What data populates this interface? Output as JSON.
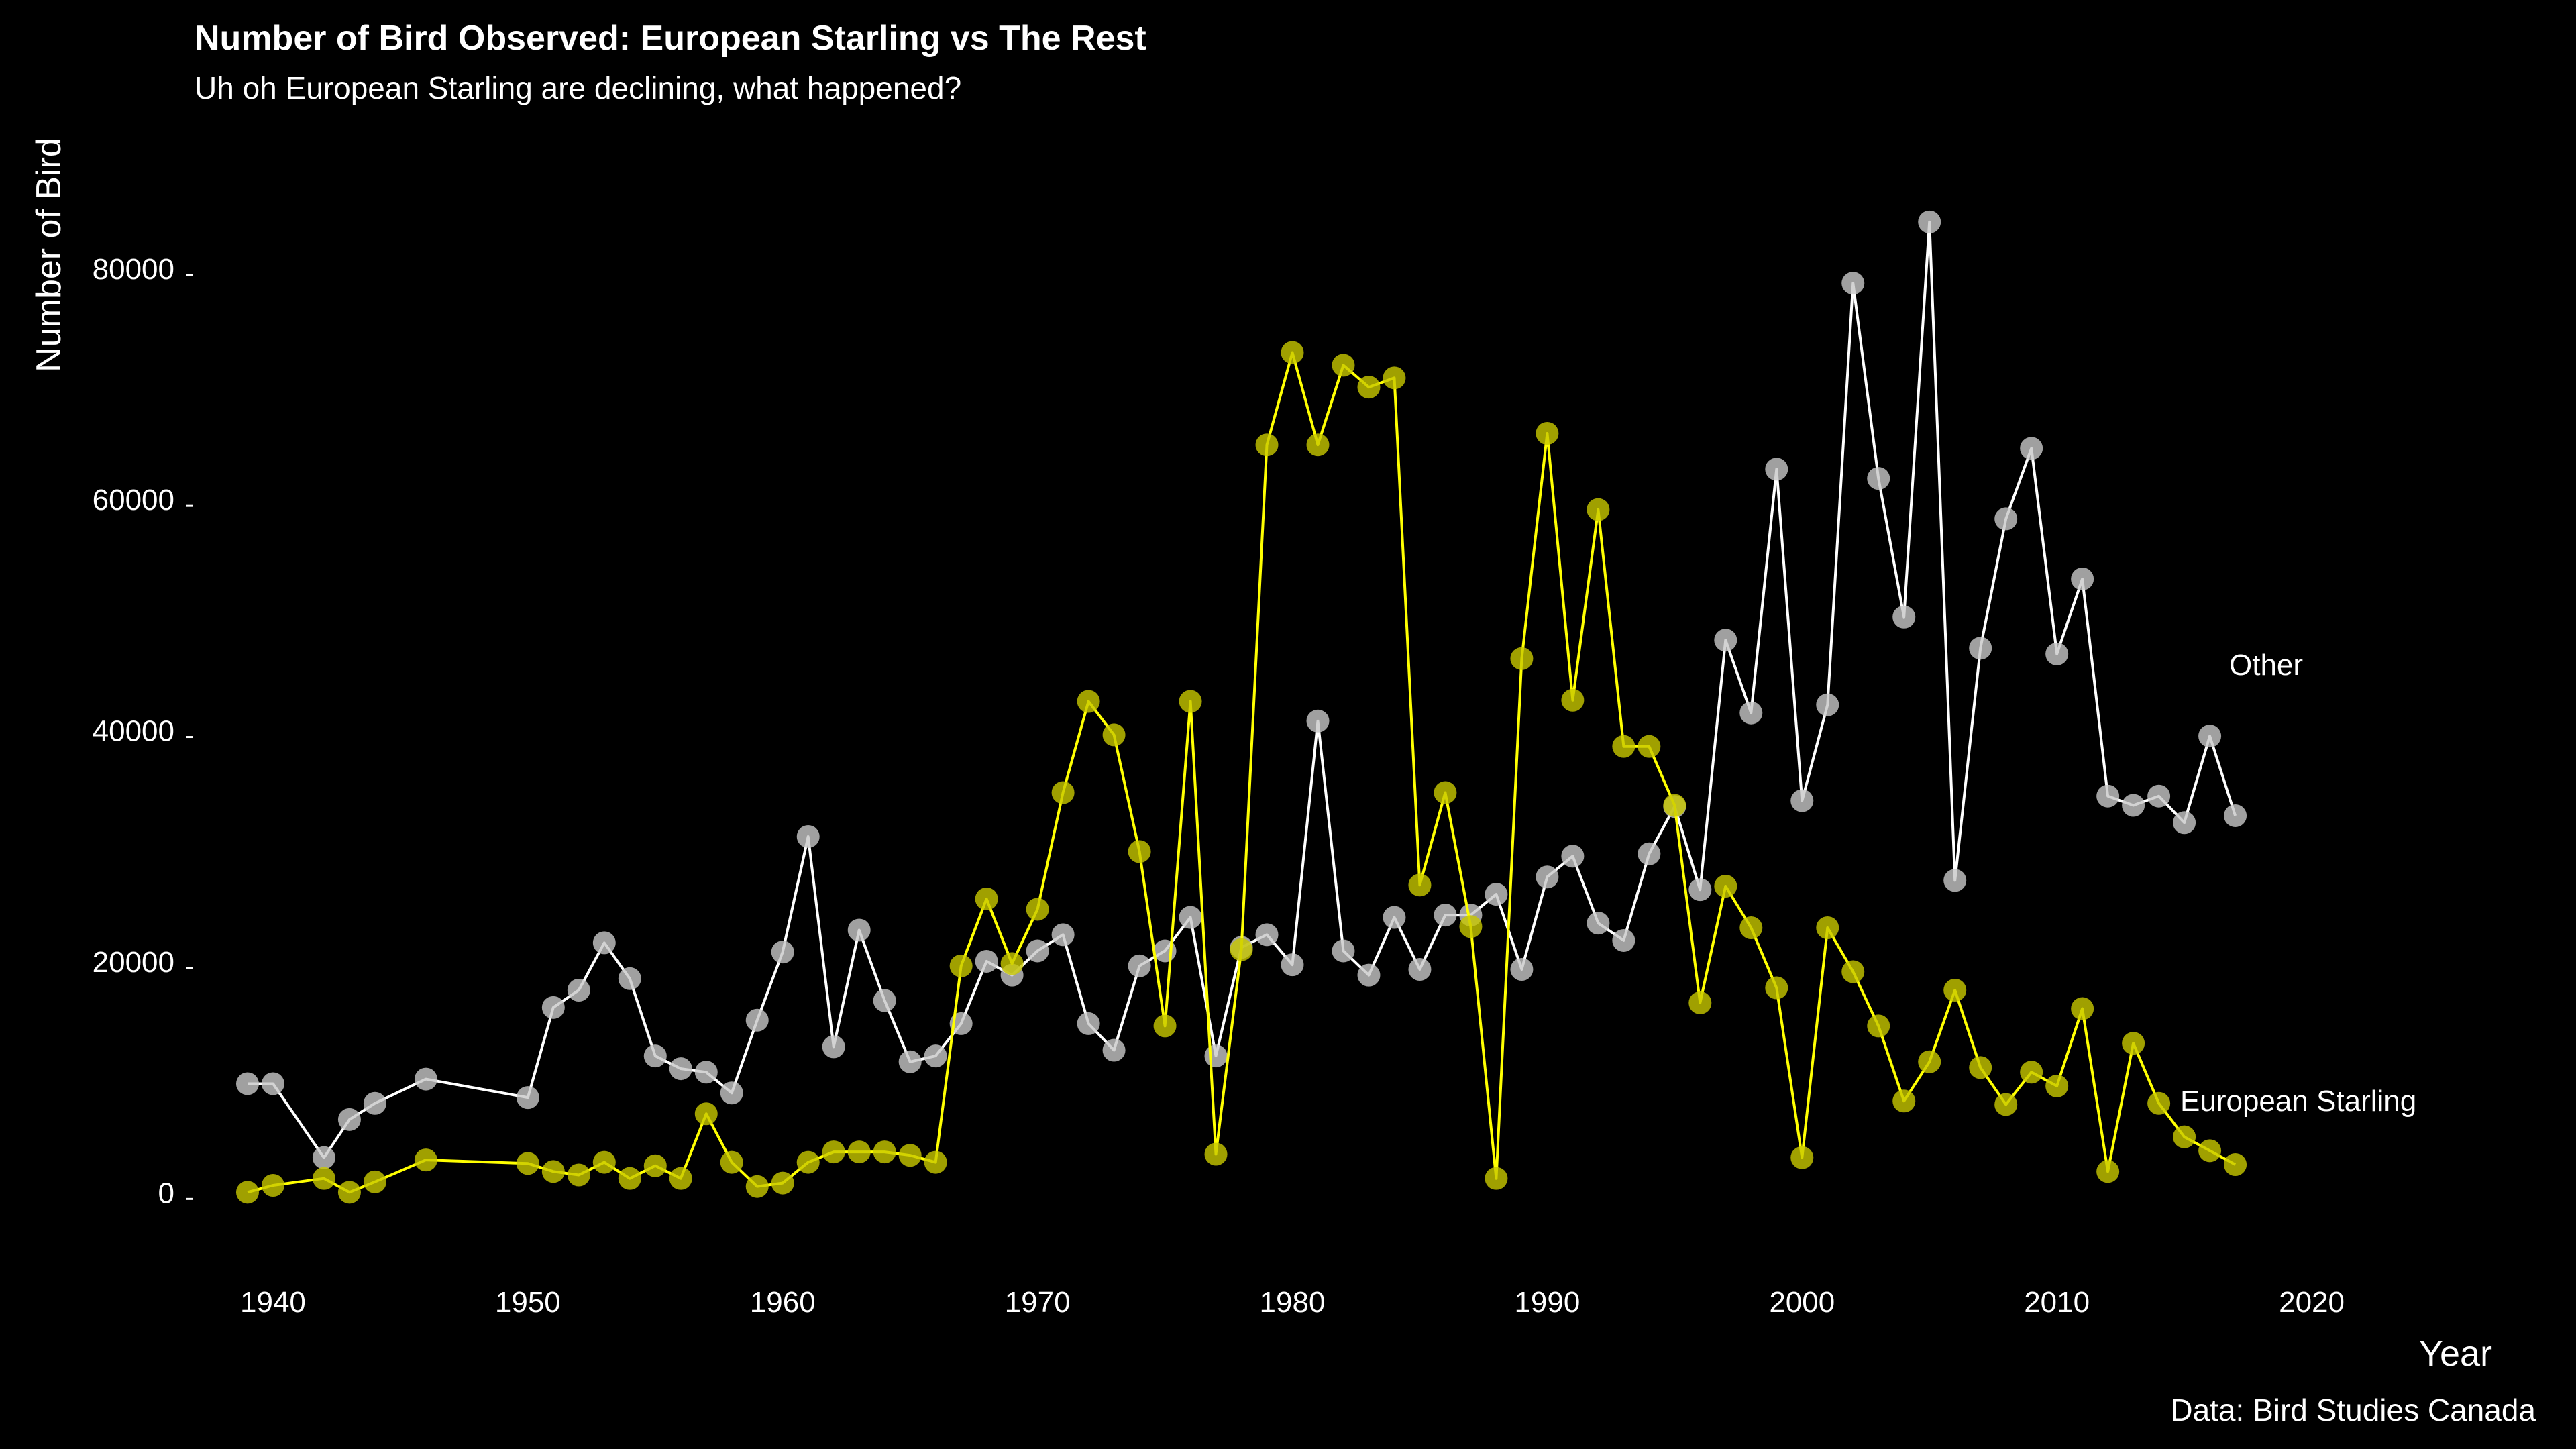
{
  "chart_data": {
    "type": "line",
    "title": "Number of Bird Observed: European Starling vs The Rest",
    "subtitle": "Uh oh European Starling are declining, what happened?",
    "xlabel": "Year",
    "ylabel": "Number of Bird",
    "caption": "Data: Bird Studies Canada",
    "xlim": [
      1937,
      2024
    ],
    "ylim": [
      -3000,
      88000
    ],
    "x_ticks": [
      1940,
      1950,
      1960,
      1970,
      1980,
      1990,
      2000,
      2010,
      2020
    ],
    "y_ticks": [
      0,
      20000,
      40000,
      60000,
      80000
    ],
    "grid": false,
    "legend": "none",
    "colors": {
      "background": "#000000",
      "text": "#ffffff",
      "other_line": "#ffffff",
      "other_point": "#c8c8c8",
      "starling_line": "#ffff00",
      "starling_point": "#c8c800"
    },
    "series": [
      {
        "name": "Other",
        "label": "Other",
        "x": [
          1939,
          1940,
          1942,
          1943,
          1944,
          1946,
          1950,
          1951,
          1952,
          1953,
          1954,
          1955,
          1956,
          1957,
          1958,
          1959,
          1960,
          1961,
          1962,
          1963,
          1964,
          1965,
          1966,
          1967,
          1968,
          1969,
          1970,
          1971,
          1972,
          1973,
          1974,
          1975,
          1976,
          1977,
          1978,
          1979,
          1980,
          1981,
          1982,
          1983,
          1984,
          1985,
          1986,
          1987,
          1988,
          1989,
          1990,
          1991,
          1992,
          1993,
          1994,
          1995,
          1996,
          1997,
          1998,
          1999,
          2000,
          2001,
          2002,
          2003,
          2004,
          2005,
          2006,
          2007,
          2008,
          2009,
          2010,
          2011,
          2012,
          2013,
          2014,
          2015,
          2016,
          2017
        ],
        "values": [
          9400,
          9400,
          3000,
          6300,
          7700,
          9800,
          8200,
          16000,
          17500,
          21600,
          18500,
          11800,
          10700,
          10400,
          8600,
          14900,
          20800,
          30800,
          12600,
          22700,
          16600,
          11300,
          11800,
          14600,
          20000,
          18800,
          20900,
          22300,
          14600,
          12300,
          19600,
          20900,
          23800,
          11800,
          21200,
          22300,
          19700,
          40800,
          20900,
          18800,
          23800,
          19300,
          24000,
          24000,
          25800,
          19300,
          27300,
          29100,
          23300,
          21800,
          29300,
          33400,
          26200,
          47800,
          41500,
          62600,
          33900,
          42200,
          78700,
          61800,
          49800,
          84000,
          27000,
          47100,
          58300,
          64400,
          46600,
          53100,
          34300,
          33500,
          34300,
          32000,
          39500,
          32600
        ]
      },
      {
        "name": "European Starling",
        "label": "European Starling",
        "x": [
          1939,
          1940,
          1942,
          1943,
          1944,
          1946,
          1950,
          1951,
          1952,
          1953,
          1954,
          1955,
          1956,
          1957,
          1958,
          1959,
          1960,
          1961,
          1962,
          1963,
          1964,
          1965,
          1966,
          1967,
          1968,
          1969,
          1970,
          1971,
          1972,
          1973,
          1974,
          1975,
          1976,
          1977,
          1978,
          1979,
          1980,
          1981,
          1982,
          1983,
          1984,
          1985,
          1986,
          1987,
          1988,
          1989,
          1990,
          1991,
          1992,
          1993,
          1994,
          1995,
          1996,
          1997,
          1998,
          1999,
          2000,
          2001,
          2002,
          2003,
          2004,
          2005,
          2006,
          2007,
          2008,
          2009,
          2010,
          2011,
          2012,
          2013,
          2014,
          2015,
          2016,
          2017
        ],
        "values": [
          0,
          600,
          1200,
          0,
          900,
          2800,
          2500,
          1800,
          1500,
          2600,
          1200,
          2300,
          1200,
          6800,
          2600,
          500,
          800,
          2600,
          3500,
          3500,
          3500,
          3200,
          2600,
          19600,
          25400,
          19800,
          24500,
          34600,
          42500,
          39600,
          29500,
          14400,
          42500,
          3300,
          21000,
          64700,
          72700,
          64700,
          71600,
          69700,
          70500,
          26600,
          34600,
          23000,
          1200,
          46200,
          65700,
          42600,
          59100,
          38600,
          38600,
          33500,
          16400,
          26500,
          22900,
          17700,
          3000,
          22900,
          19100,
          14400,
          7900,
          11300,
          17500,
          10800,
          7600,
          10400,
          9200,
          15900,
          1800,
          12900,
          7700,
          4800,
          3600,
          2400
        ]
      }
    ]
  }
}
